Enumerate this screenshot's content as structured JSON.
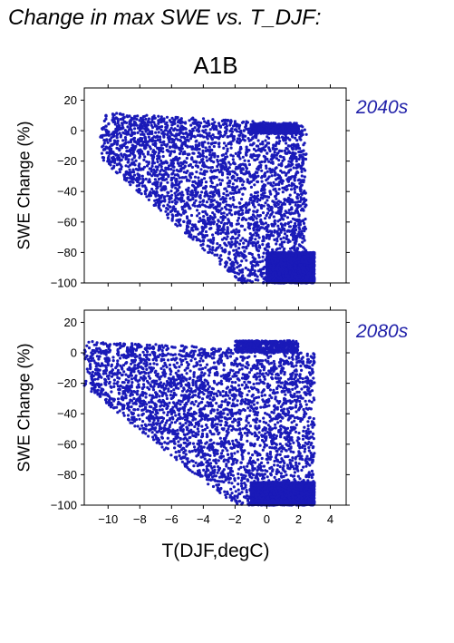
{
  "header": {
    "title": "Change in max SWE vs. T_DJF:",
    "scenario": "A1B"
  },
  "chart_data": [
    {
      "type": "scatter",
      "panel_label": "2040s",
      "xlabel": "T(DJF,degC)",
      "ylabel": "SWE Change (%)",
      "xlim": [
        -11.5,
        5.0
      ],
      "ylim": [
        -100,
        28
      ],
      "xticks": [
        -10,
        -8,
        -6,
        -4,
        -2,
        0,
        2,
        4
      ],
      "yticks": [
        20,
        0,
        -20,
        -40,
        -60,
        -80,
        -100
      ],
      "grid": false,
      "series_color": "#1a1ab8",
      "clusters": [
        {
          "x_range": [
            -10.5,
            2.5
          ],
          "y_range": [
            -100,
            12
          ],
          "density": "dense",
          "x_center": -3,
          "y_center": -40
        },
        {
          "x_range": [
            -1,
            2
          ],
          "y_range": [
            -2,
            5
          ],
          "density": "band",
          "x_center": 0.5,
          "y_center": 2
        },
        {
          "x_range": [
            0,
            3
          ],
          "y_range": [
            -100,
            -80
          ],
          "density": "dense",
          "x_center": 1.5,
          "y_center": -92
        }
      ]
    },
    {
      "type": "scatter",
      "panel_label": "2080s",
      "xlabel": "T(DJF,degC)",
      "ylabel": "SWE Change (%)",
      "xlim": [
        -11.5,
        5.0
      ],
      "ylim": [
        -100,
        28
      ],
      "xticks": [
        -10,
        -8,
        -6,
        -4,
        -2,
        0,
        2,
        4
      ],
      "yticks": [
        20,
        0,
        -20,
        -40,
        -60,
        -80,
        -100
      ],
      "grid": false,
      "series_color": "#1a1ab8",
      "clusters": [
        {
          "x_range": [
            -11.5,
            3
          ],
          "y_range": [
            -100,
            8
          ],
          "density": "dense",
          "x_center": -3.5,
          "y_center": -65
        },
        {
          "x_range": [
            -2,
            2
          ],
          "y_range": [
            0,
            8
          ],
          "density": "band",
          "x_center": 0,
          "y_center": 5
        },
        {
          "x_range": [
            -1,
            3
          ],
          "y_range": [
            -100,
            -85
          ],
          "density": "dense",
          "x_center": 1,
          "y_center": -95
        }
      ]
    }
  ]
}
